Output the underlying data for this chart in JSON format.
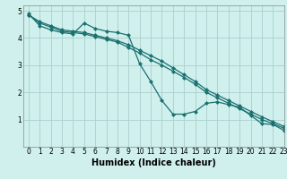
{
  "xlabel": "Humidex (Indice chaleur)",
  "bg_color": "#cff0ec",
  "line_color": "#1a7070",
  "grid_color": "#aacfcf",
  "x_data": [
    0,
    1,
    2,
    3,
    4,
    5,
    6,
    7,
    8,
    9,
    10,
    11,
    12,
    13,
    14,
    15,
    16,
    17,
    18,
    19,
    20,
    21,
    22,
    23
  ],
  "y_main": [
    4.9,
    4.45,
    4.3,
    4.2,
    4.15,
    4.55,
    4.35,
    4.25,
    4.2,
    4.1,
    3.05,
    2.4,
    1.7,
    1.2,
    1.2,
    1.3,
    1.6,
    1.65,
    1.55,
    1.45,
    1.15,
    0.85,
    0.82,
    0.6
  ],
  "y_upper": [
    4.85,
    4.6,
    4.45,
    4.3,
    4.25,
    4.2,
    4.1,
    4.0,
    3.9,
    3.75,
    3.55,
    3.35,
    3.15,
    2.9,
    2.65,
    2.4,
    2.1,
    1.9,
    1.7,
    1.5,
    1.3,
    1.1,
    0.92,
    0.75
  ],
  "y_lower": [
    4.85,
    4.55,
    4.4,
    4.25,
    4.2,
    4.15,
    4.05,
    3.95,
    3.85,
    3.65,
    3.45,
    3.2,
    3.0,
    2.78,
    2.55,
    2.3,
    2.0,
    1.8,
    1.6,
    1.4,
    1.2,
    1.0,
    0.85,
    0.68
  ],
  "xlim": [
    -0.5,
    23
  ],
  "ylim": [
    0,
    5.2
  ],
  "yticks": [
    1,
    2,
    3,
    4,
    5
  ],
  "xticks": [
    0,
    1,
    2,
    3,
    4,
    5,
    6,
    7,
    8,
    9,
    10,
    11,
    12,
    13,
    14,
    15,
    16,
    17,
    18,
    19,
    20,
    21,
    22,
    23
  ],
  "markersize": 2.5,
  "linewidth": 0.9,
  "tick_fontsize": 5.5,
  "xlabel_fontsize": 7
}
